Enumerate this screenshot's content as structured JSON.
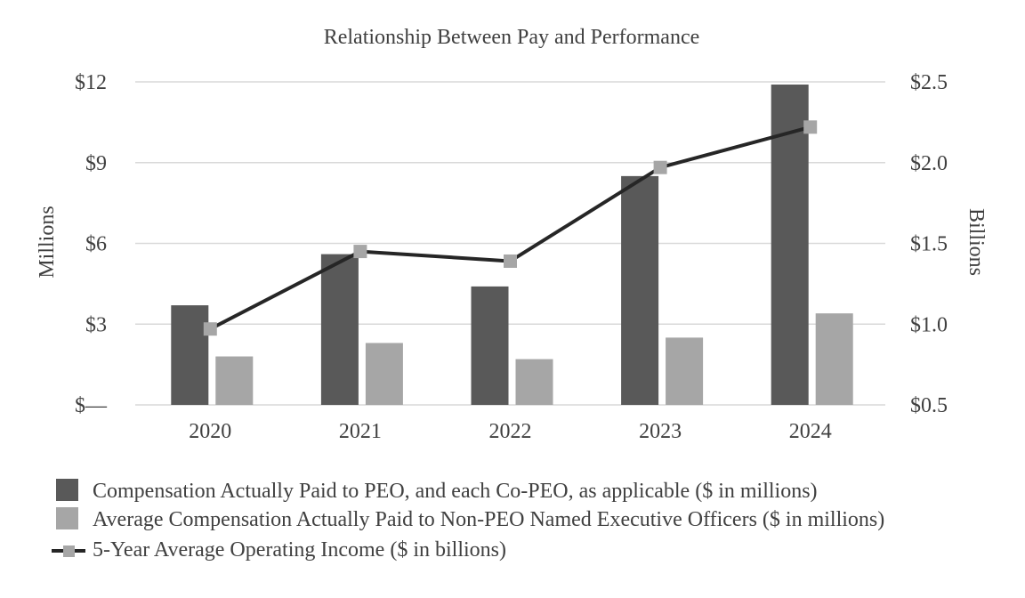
{
  "chart_data": {
    "type": "bar+line",
    "title": "Relationship Between Pay and Performance",
    "categories": [
      "2020",
      "2021",
      "2022",
      "2023",
      "2024"
    ],
    "ylabel_left": "Millions",
    "ylabel_right": "Billions",
    "y_left_range": [
      0,
      12
    ],
    "y_left_ticks": [
      "$—",
      "$3",
      "$6",
      "$9",
      "$12"
    ],
    "y_right_range": [
      0.5,
      2.5
    ],
    "y_right_ticks": [
      "$0.5",
      "$1.0",
      "$1.5",
      "$2.0",
      "$2.5"
    ],
    "grid": true,
    "legend_position": "bottom",
    "series": [
      {
        "name": "Compensation Actually Paid to PEO, and each Co-PEO, as applicable ($ in millions)",
        "kind": "bar",
        "axis": "left",
        "color": "#595959",
        "values": [
          3.7,
          5.6,
          4.4,
          8.5,
          11.9
        ]
      },
      {
        "name": "Average Compensation Actually Paid to Non-PEO Named Executive Officers ($ in millions)",
        "kind": "bar",
        "axis": "left",
        "color": "#a6a6a6",
        "values": [
          1.8,
          2.3,
          1.7,
          2.5,
          3.4
        ]
      },
      {
        "name": "5-Year Average Operating Income ($ in billions)",
        "kind": "line",
        "axis": "right",
        "color": "#262626",
        "marker_color": "#a6a6a6",
        "values": [
          0.97,
          1.45,
          1.39,
          1.97,
          2.22
        ]
      }
    ]
  }
}
